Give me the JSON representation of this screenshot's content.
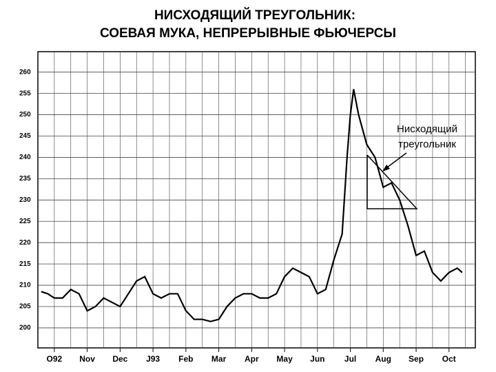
{
  "chart_data": {
    "type": "line",
    "title": "НИСХОДЯЩИЙ ТРЕУГОЛЬНИК:",
    "subtitle": "СОЕВАЯ МУКА, НЕПРЕРЫВНЫЕ ФЬЮЧЕРСЫ",
    "annotation": [
      "Нисходящий",
      "треугольник"
    ],
    "x": [
      -0.4,
      -0.2,
      0,
      0.25,
      0.5,
      0.75,
      1.0,
      1.25,
      1.5,
      1.75,
      2.0,
      2.25,
      2.5,
      2.75,
      3.0,
      3.25,
      3.5,
      3.75,
      4.0,
      4.25,
      4.5,
      4.75,
      5.0,
      5.25,
      5.5,
      5.75,
      6.0,
      6.25,
      6.5,
      6.75,
      7.0,
      7.25,
      7.5,
      7.75,
      8.0,
      8.25,
      8.5,
      8.75,
      8.9,
      9.0,
      9.1,
      9.25,
      9.5,
      9.75,
      10.0,
      10.25,
      10.5,
      10.75,
      11.0,
      11.25,
      11.5,
      11.75,
      12.0,
      12.25,
      12.4
    ],
    "series": [
      {
        "color": "#000000",
        "values": [
          208.5,
          208,
          207,
          207,
          209,
          208,
          204,
          205,
          207,
          206,
          205,
          208,
          211,
          212,
          208,
          207,
          208,
          208,
          204,
          202,
          202,
          201.5,
          202,
          205,
          207,
          208,
          208,
          207,
          207,
          208,
          212,
          214,
          213,
          212,
          208,
          209,
          216,
          222,
          240,
          250,
          256,
          250,
          243,
          240,
          233,
          234,
          230,
          224,
          217,
          218,
          213,
          211,
          213,
          214,
          213
        ]
      }
    ],
    "xlim": [
      -0.5,
      12.8
    ],
    "xticks": [
      {
        "value": 0,
        "label": "O92"
      },
      {
        "value": 1,
        "label": "Nov"
      },
      {
        "value": 2,
        "label": "Dec"
      },
      {
        "value": 3,
        "label": "J93"
      },
      {
        "value": 4,
        "label": "Feb"
      },
      {
        "value": 5,
        "label": "Mar"
      },
      {
        "value": 6,
        "label": "Apr"
      },
      {
        "value": 7,
        "label": "May"
      },
      {
        "value": 8,
        "label": "Jun"
      },
      {
        "value": 9,
        "label": "Jul"
      },
      {
        "value": 10,
        "label": "Aug"
      },
      {
        "value": 11,
        "label": "Sep"
      },
      {
        "value": 12,
        "label": "Oct"
      }
    ],
    "ylim": [
      195.3,
      264.8
    ],
    "yticks": [
      200,
      205,
      210,
      215,
      220,
      225,
      230,
      235,
      240,
      245,
      250,
      255,
      260
    ],
    "grid": true
  }
}
